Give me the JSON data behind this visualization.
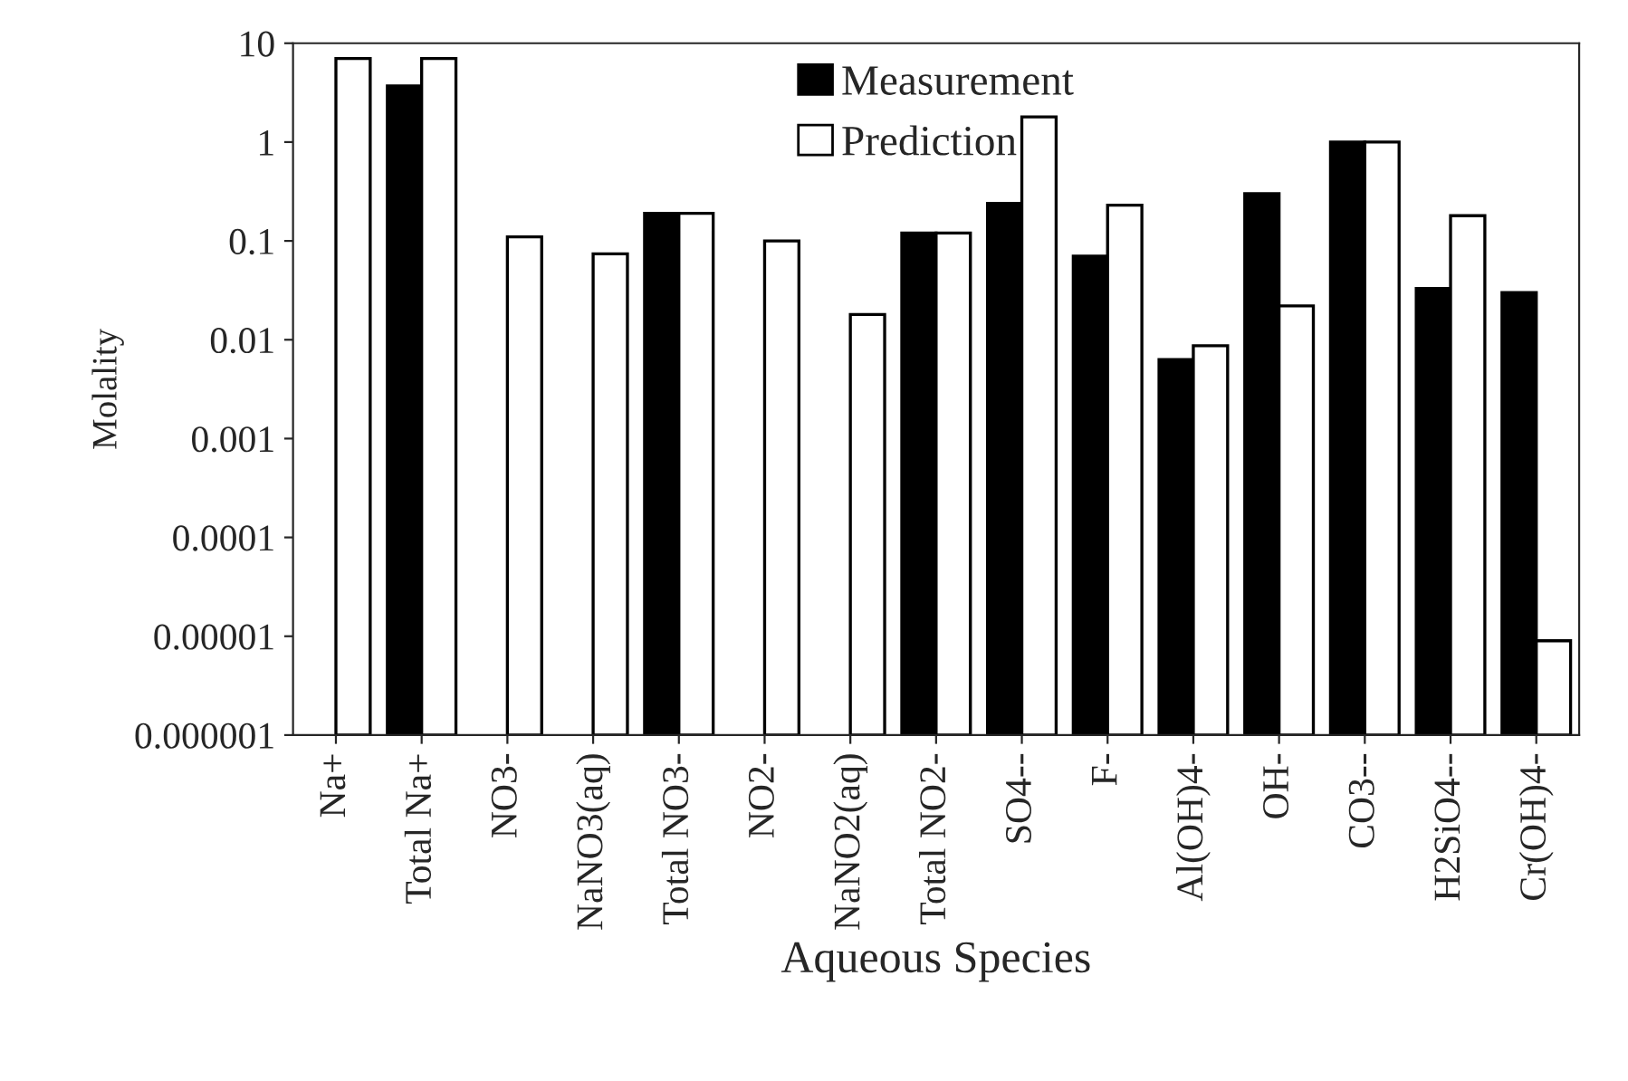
{
  "chart_data": {
    "type": "bar",
    "xlabel": "Aqueous Species",
    "ylabel": "Molality",
    "categories": [
      "Na+",
      "Total Na+",
      "NO3-",
      "NaNO3(aq)",
      "Total NO3-",
      "NO2-",
      "NaNO2(aq)",
      "Total NO2-",
      "SO4--",
      "F-",
      "Al(OH)4-",
      "OH-",
      "CO3--",
      "H2SiO4--",
      "Cr(OH)4-"
    ],
    "series": [
      {
        "name": "Measurement",
        "color": "#000000",
        "values": [
          null,
          3.7,
          null,
          null,
          0.19,
          null,
          null,
          0.12,
          0.24,
          0.07,
          0.0063,
          0.3,
          1.0,
          0.033,
          0.03
        ]
      },
      {
        "name": "Prediction",
        "color": "#ffffff",
        "values": [
          7,
          7,
          0.11,
          0.074,
          0.19,
          0.1,
          0.018,
          0.12,
          1.8,
          0.23,
          0.0087,
          0.022,
          1.0,
          0.18,
          9e-06
        ]
      }
    ],
    "log": true,
    "ylim": [
      1e-06,
      10
    ],
    "yticks": [
      {
        "value": 1e-06,
        "label": "0.000001"
      },
      {
        "value": 1e-05,
        "label": "0.00001"
      },
      {
        "value": 0.0001,
        "label": "0.0001"
      },
      {
        "value": 0.001,
        "label": "0.001"
      },
      {
        "value": 0.01,
        "label": "0.01"
      },
      {
        "value": 0.1,
        "label": "0.1"
      },
      {
        "value": 1,
        "label": "1"
      },
      {
        "value": 10,
        "label": "10"
      }
    ],
    "legend": "top center",
    "grid": false
  }
}
